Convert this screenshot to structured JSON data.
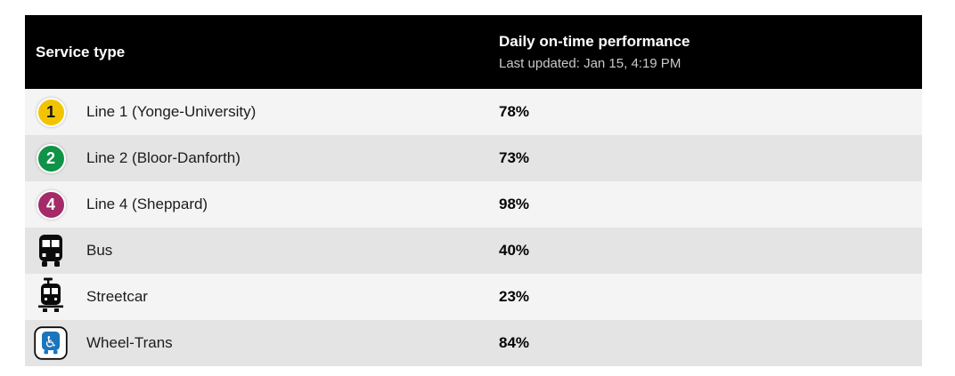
{
  "table": {
    "header": {
      "service_type_label": "Service type",
      "performance_title": "Daily on-time performance",
      "last_updated": "Last updated: Jan 15, 4:19 PM"
    },
    "rows": [
      {
        "icon": "line-1-badge",
        "badge_text": "1",
        "badge_color": "#F2C400",
        "badge_text_color": "#111111",
        "label": "Line 1 (Yonge-University)",
        "value": "78%"
      },
      {
        "icon": "line-2-badge",
        "badge_text": "2",
        "badge_color": "#0F9347",
        "badge_text_color": "#FFFFFF",
        "label": "Line 2 (Bloor-Danforth)",
        "value": "73%"
      },
      {
        "icon": "line-4-badge",
        "badge_text": "4",
        "badge_color": "#A32B68",
        "badge_text_color": "#FFFFFF",
        "label": "Line 4 (Sheppard)",
        "value": "98%"
      },
      {
        "icon": "bus-icon",
        "label": "Bus",
        "value": "40%"
      },
      {
        "icon": "streetcar-icon",
        "label": "Streetcar",
        "value": "23%"
      },
      {
        "icon": "wheelchair-icon",
        "label": "Wheel-Trans",
        "value": "84%"
      }
    ],
    "colors": {
      "header_bg": "#000000",
      "row_light": "#f4f4f4",
      "row_dark": "#e4e4e4",
      "transit_icon_black": "#0b0b0b",
      "wheelchair_blue": "#1B75BC"
    }
  }
}
